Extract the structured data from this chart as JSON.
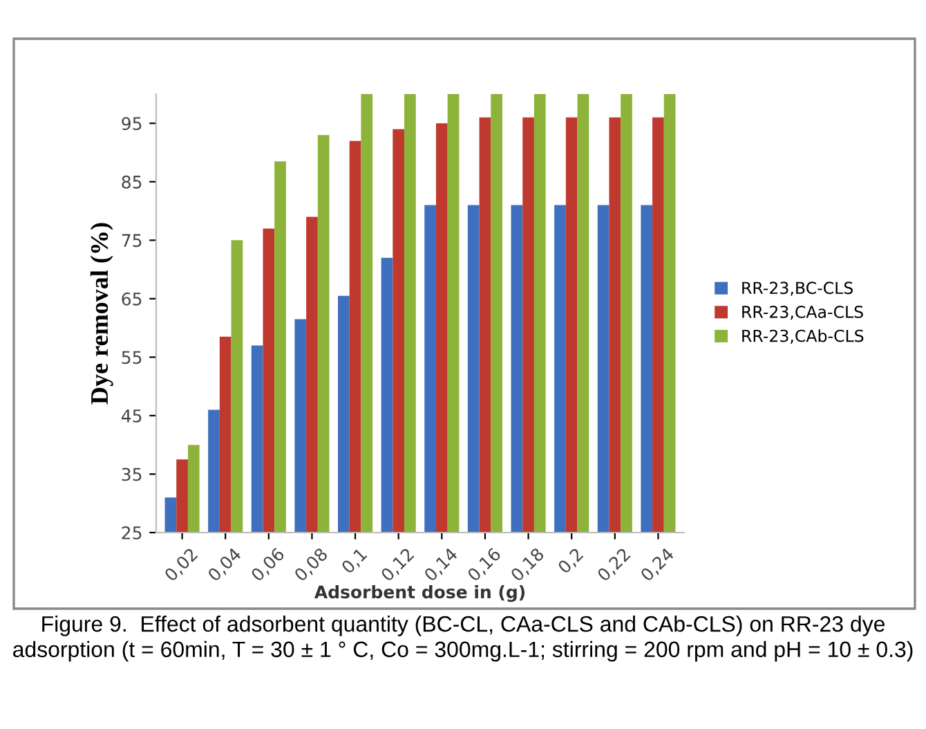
{
  "chart_data": {
    "type": "bar",
    "ylabel": "Dye removal (%)",
    "xlabel": "Adsorbent dose in (g)",
    "categories": [
      "0,02",
      "0,04",
      "0,06",
      "0,08",
      "0,1",
      "0,12",
      "0,14",
      "0,16",
      "0,18",
      "0,2",
      "0,22",
      "0,24"
    ],
    "series": [
      {
        "name": "RR-23,BC-CLS",
        "color": "#3f6fbf",
        "values": [
          31,
          46,
          57,
          61.5,
          65.5,
          72,
          81,
          81,
          81,
          81,
          81,
          81
        ]
      },
      {
        "name": "RR-23,CAa-CLS",
        "color": "#c0392f",
        "values": [
          37.5,
          58.5,
          77,
          79,
          92,
          94,
          95,
          96,
          96,
          96,
          96,
          96
        ]
      },
      {
        "name": "RR-23,CAb-CLS",
        "color": "#8db33a",
        "values": [
          40,
          75,
          88.5,
          93,
          100,
          100,
          100,
          100,
          100,
          100,
          100,
          100
        ]
      }
    ],
    "ylim": [
      25,
      100
    ],
    "yticks": [
      25,
      35,
      45,
      55,
      65,
      75,
      85,
      95
    ],
    "grid": false,
    "legend": "right",
    "annotations": [
      "Figure 9.  Effect of adsorbent quantity (BC-CL, CAa-CLS and CAb-CLS) on RR-23 dye adsorption (t = 60min, T = 30 ± 1 ° C, Co = 300mg.L-1; stirring = 200 rpm and pH = 10 ± 0.3)"
    ]
  }
}
